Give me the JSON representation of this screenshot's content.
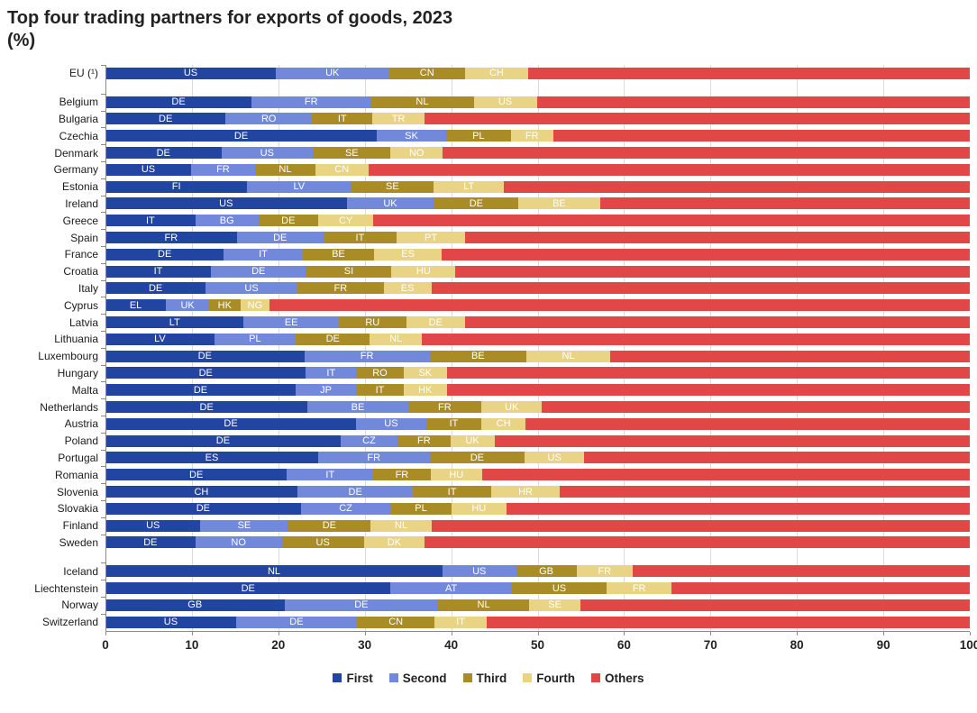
{
  "title": "Top four trading partners for exports of goods, 2023",
  "subtitle": "(%)",
  "legend": [
    {
      "label": "First",
      "color": "#2345A2"
    },
    {
      "label": "Second",
      "color": "#7289DB"
    },
    {
      "label": "Third",
      "color": "#A98C26"
    },
    {
      "label": "Fourth",
      "color": "#E9D385"
    },
    {
      "label": "Others",
      "color": "#E24747"
    }
  ],
  "chart_data": {
    "type": "bar",
    "orientation": "horizontal",
    "stacked": true,
    "title": "Top four trading partners for exports of goods, 2023",
    "unit": "%",
    "xlim": [
      0,
      100
    ],
    "x_ticks": [
      0,
      10,
      20,
      30,
      40,
      50,
      60,
      70,
      80,
      90,
      100
    ],
    "grid": true,
    "legend_position": "bottom",
    "series_names": [
      "First",
      "Second",
      "Third",
      "Fourth",
      "Others"
    ],
    "groups": [
      {
        "name": "eu-aggregate",
        "rows": [
          {
            "country": "EU (¹)",
            "partners": [
              {
                "code": "US",
                "value": 19.7
              },
              {
                "code": "UK",
                "value": 13.1
              },
              {
                "code": "CN",
                "value": 8.8
              },
              {
                "code": "CH",
                "value": 7.3
              }
            ],
            "others": 51.1
          }
        ]
      },
      {
        "name": "member-states",
        "rows": [
          {
            "country": "Belgium",
            "partners": [
              {
                "code": "DE",
                "value": 16.9
              },
              {
                "code": "FR",
                "value": 13.8
              },
              {
                "code": "NL",
                "value": 11.9
              },
              {
                "code": "US",
                "value": 7.3
              }
            ],
            "others": 50.1
          },
          {
            "country": "Bulgaria",
            "partners": [
              {
                "code": "DE",
                "value": 13.9
              },
              {
                "code": "RO",
                "value": 10.0
              },
              {
                "code": "IT",
                "value": 7.0
              },
              {
                "code": "TR",
                "value": 6.0
              }
            ],
            "others": 63.1
          },
          {
            "country": "Czechia",
            "partners": [
              {
                "code": "DE",
                "value": 31.4
              },
              {
                "code": "SK",
                "value": 8.0
              },
              {
                "code": "PL",
                "value": 7.5
              },
              {
                "code": "FR",
                "value": 4.9
              }
            ],
            "others": 48.2
          },
          {
            "country": "Denmark",
            "partners": [
              {
                "code": "DE",
                "value": 13.4
              },
              {
                "code": "US",
                "value": 10.6
              },
              {
                "code": "SE",
                "value": 9.0
              },
              {
                "code": "NO",
                "value": 6.0
              }
            ],
            "others": 61.0
          },
          {
            "country": "Germany",
            "partners": [
              {
                "code": "US",
                "value": 9.9
              },
              {
                "code": "FR",
                "value": 7.4
              },
              {
                "code": "NL",
                "value": 7.0
              },
              {
                "code": "CN",
                "value": 6.1
              }
            ],
            "others": 69.6
          },
          {
            "country": "Estonia",
            "partners": [
              {
                "code": "FI",
                "value": 16.4
              },
              {
                "code": "LV",
                "value": 12.0
              },
              {
                "code": "SE",
                "value": 9.6
              },
              {
                "code": "LT",
                "value": 8.1
              }
            ],
            "others": 53.9
          },
          {
            "country": "Ireland",
            "partners": [
              {
                "code": "US",
                "value": 27.9
              },
              {
                "code": "UK",
                "value": 10.1
              },
              {
                "code": "DE",
                "value": 9.8
              },
              {
                "code": "BE",
                "value": 9.4
              }
            ],
            "others": 42.8
          },
          {
            "country": "Greece",
            "partners": [
              {
                "code": "IT",
                "value": 10.4
              },
              {
                "code": "BG",
                "value": 7.3
              },
              {
                "code": "DE",
                "value": 6.9
              },
              {
                "code": "CY",
                "value": 6.4
              }
            ],
            "others": 69.0
          },
          {
            "country": "Spain",
            "partners": [
              {
                "code": "FR",
                "value": 15.2
              },
              {
                "code": "DE",
                "value": 10.0
              },
              {
                "code": "IT",
                "value": 8.5
              },
              {
                "code": "PT",
                "value": 7.9
              }
            ],
            "others": 58.4
          },
          {
            "country": "France",
            "partners": [
              {
                "code": "DE",
                "value": 13.7
              },
              {
                "code": "IT",
                "value": 9.1
              },
              {
                "code": "BE",
                "value": 8.3
              },
              {
                "code": "ES",
                "value": 7.8
              }
            ],
            "others": 61.1
          },
          {
            "country": "Croatia",
            "partners": [
              {
                "code": "IT",
                "value": 12.2
              },
              {
                "code": "DE",
                "value": 11.0
              },
              {
                "code": "SI",
                "value": 9.9
              },
              {
                "code": "HU",
                "value": 7.4
              }
            ],
            "others": 59.5
          },
          {
            "country": "Italy",
            "partners": [
              {
                "code": "DE",
                "value": 11.6
              },
              {
                "code": "US",
                "value": 10.6
              },
              {
                "code": "FR",
                "value": 10.0
              },
              {
                "code": "ES",
                "value": 5.5
              }
            ],
            "others": 62.3
          },
          {
            "country": "Cyprus",
            "partners": [
              {
                "code": "EL",
                "value": 7.0
              },
              {
                "code": "UK",
                "value": 5.0
              },
              {
                "code": "HK",
                "value": 3.6
              },
              {
                "code": "NG",
                "value": 3.4
              }
            ],
            "others": 81.0
          },
          {
            "country": "Latvia",
            "partners": [
              {
                "code": "LT",
                "value": 16.0
              },
              {
                "code": "EE",
                "value": 11.0
              },
              {
                "code": "RU",
                "value": 7.8
              },
              {
                "code": "DE",
                "value": 6.8
              }
            ],
            "others": 58.4
          },
          {
            "country": "Lithuania",
            "partners": [
              {
                "code": "LV",
                "value": 12.6
              },
              {
                "code": "PL",
                "value": 9.4
              },
              {
                "code": "DE",
                "value": 8.6
              },
              {
                "code": "NL",
                "value": 6.0
              }
            ],
            "others": 63.4
          },
          {
            "country": "Luxembourg",
            "partners": [
              {
                "code": "DE",
                "value": 23.0
              },
              {
                "code": "FR",
                "value": 14.5
              },
              {
                "code": "BE",
                "value": 11.2
              },
              {
                "code": "NL",
                "value": 9.7
              }
            ],
            "others": 41.6
          },
          {
            "country": "Hungary",
            "partners": [
              {
                "code": "DE",
                "value": 23.2
              },
              {
                "code": "IT",
                "value": 5.8
              },
              {
                "code": "RO",
                "value": 5.5
              },
              {
                "code": "SK",
                "value": 5.0
              }
            ],
            "others": 60.5
          },
          {
            "country": "Malta",
            "partners": [
              {
                "code": "DE",
                "value": 22.0
              },
              {
                "code": "JP",
                "value": 7.0
              },
              {
                "code": "IT",
                "value": 5.5
              },
              {
                "code": "HK",
                "value": 5.0
              }
            ],
            "others": 60.5
          },
          {
            "country": "Netherlands",
            "partners": [
              {
                "code": "DE",
                "value": 23.4
              },
              {
                "code": "BE",
                "value": 11.6
              },
              {
                "code": "FR",
                "value": 8.5
              },
              {
                "code": "UK",
                "value": 7.0
              }
            ],
            "others": 49.5
          },
          {
            "country": "Austria",
            "partners": [
              {
                "code": "DE",
                "value": 29.0
              },
              {
                "code": "US",
                "value": 8.1
              },
              {
                "code": "IT",
                "value": 6.4
              },
              {
                "code": "CH",
                "value": 5.1
              }
            ],
            "others": 51.4
          },
          {
            "country": "Poland",
            "partners": [
              {
                "code": "DE",
                "value": 27.2
              },
              {
                "code": "CZ",
                "value": 6.6
              },
              {
                "code": "FR",
                "value": 6.1
              },
              {
                "code": "UK",
                "value": 5.1
              }
            ],
            "others": 55.0
          },
          {
            "country": "Portugal",
            "partners": [
              {
                "code": "ES",
                "value": 24.6
              },
              {
                "code": "FR",
                "value": 12.9
              },
              {
                "code": "DE",
                "value": 11.0
              },
              {
                "code": "US",
                "value": 6.9
              }
            ],
            "others": 44.6
          },
          {
            "country": "Romania",
            "partners": [
              {
                "code": "DE",
                "value": 21.0
              },
              {
                "code": "IT",
                "value": 10.0
              },
              {
                "code": "FR",
                "value": 6.6
              },
              {
                "code": "HU",
                "value": 6.0
              }
            ],
            "others": 56.4
          },
          {
            "country": "Slovenia",
            "partners": [
              {
                "code": "CH",
                "value": 22.2
              },
              {
                "code": "DE",
                "value": 13.4
              },
              {
                "code": "IT",
                "value": 9.0
              },
              {
                "code": "HR",
                "value": 8.0
              }
            ],
            "others": 47.4
          },
          {
            "country": "Slovakia",
            "partners": [
              {
                "code": "DE",
                "value": 22.6
              },
              {
                "code": "CZ",
                "value": 10.4
              },
              {
                "code": "PL",
                "value": 7.0
              },
              {
                "code": "HU",
                "value": 6.4
              }
            ],
            "others": 53.6
          },
          {
            "country": "Finland",
            "partners": [
              {
                "code": "US",
                "value": 11.0
              },
              {
                "code": "SE",
                "value": 10.1
              },
              {
                "code": "DE",
                "value": 9.6
              },
              {
                "code": "NL",
                "value": 7.0
              }
            ],
            "others": 62.3
          },
          {
            "country": "Sweden",
            "partners": [
              {
                "code": "DE",
                "value": 10.4
              },
              {
                "code": "NO",
                "value": 10.0
              },
              {
                "code": "US",
                "value": 9.5
              },
              {
                "code": "DK",
                "value": 7.0
              }
            ],
            "others": 63.1
          }
        ]
      },
      {
        "name": "efta",
        "rows": [
          {
            "country": "Iceland",
            "partners": [
              {
                "code": "NL",
                "value": 39.0
              },
              {
                "code": "US",
                "value": 8.5
              },
              {
                "code": "GB",
                "value": 7.0
              },
              {
                "code": "FR",
                "value": 6.5
              }
            ],
            "others": 39.0
          },
          {
            "country": "Liechtenstein",
            "partners": [
              {
                "code": "DE",
                "value": 33.0
              },
              {
                "code": "AT",
                "value": 14.0
              },
              {
                "code": "US",
                "value": 11.0
              },
              {
                "code": "FR",
                "value": 7.5
              }
            ],
            "others": 34.5
          },
          {
            "country": "Norway",
            "partners": [
              {
                "code": "GB",
                "value": 20.7
              },
              {
                "code": "DE",
                "value": 17.8
              },
              {
                "code": "NL",
                "value": 10.5
              },
              {
                "code": "SE",
                "value": 6.0
              }
            ],
            "others": 45.0
          },
          {
            "country": "Switzerland",
            "partners": [
              {
                "code": "US",
                "value": 15.1
              },
              {
                "code": "DE",
                "value": 14.0
              },
              {
                "code": "CN",
                "value": 9.0
              },
              {
                "code": "IT",
                "value": 6.0
              }
            ],
            "others": 55.9
          }
        ]
      }
    ]
  }
}
